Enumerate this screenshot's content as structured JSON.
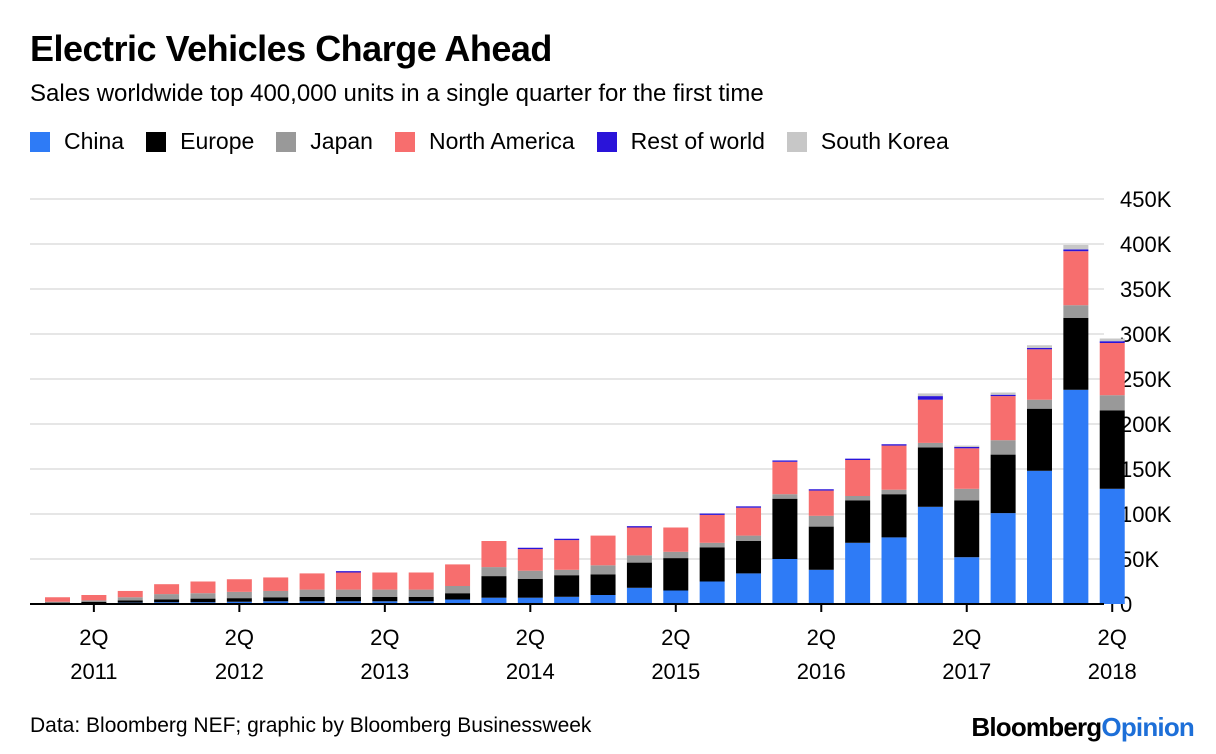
{
  "colors": {
    "China": "#2E7BF6",
    "Europe": "#000000",
    "Japan": "#999999",
    "North America": "#F76E6E",
    "Rest of world": "#2A14D9",
    "South Korea": "#C7C7C7",
    "grid": "#E6E6E6",
    "brand_accent": "#1D6FD8"
  },
  "brand": {
    "part1": "Bloomberg",
    "part2": "Opinion"
  },
  "footer": {
    "source": "Data: Bloomberg NEF; graphic by Bloomberg Businessweek"
  },
  "chart_data": {
    "type": "bar",
    "stacked": true,
    "title": "Electric Vehicles Charge Ahead",
    "subtitle": "Sales worldwide top 400,000 units in a single quarter for the first time",
    "x": [
      "1Q 2011",
      "2Q 2011",
      "3Q 2011",
      "4Q 2011",
      "1Q 2012",
      "2Q 2012",
      "3Q 2012",
      "4Q 2012",
      "1Q 2013",
      "2Q 2013",
      "3Q 2013",
      "4Q 2013",
      "1Q 2014",
      "2Q 2014",
      "3Q 2014",
      "4Q 2014",
      "1Q 2015",
      "2Q 2015",
      "3Q 2015",
      "4Q 2015",
      "1Q 2016",
      "2Q 2016",
      "3Q 2016",
      "4Q 2016",
      "1Q 2017",
      "2Q 2017",
      "3Q 2017",
      "4Q 2017",
      "1Q 2018",
      "2Q 2018"
    ],
    "x_tick_labels": [
      {
        "index": 1,
        "quarter": "2Q",
        "year": "2011"
      },
      {
        "index": 5,
        "quarter": "2Q",
        "year": "2012"
      },
      {
        "index": 9,
        "quarter": "2Q",
        "year": "2013"
      },
      {
        "index": 13,
        "quarter": "2Q",
        "year": "2014"
      },
      {
        "index": 17,
        "quarter": "2Q",
        "year": "2015"
      },
      {
        "index": 21,
        "quarter": "2Q",
        "year": "2016"
      },
      {
        "index": 25,
        "quarter": "2Q",
        "year": "2017"
      },
      {
        "index": 29,
        "quarter": "2Q",
        "year": "2018"
      }
    ],
    "y_ticks": [
      {
        "value": 0,
        "label": "0"
      },
      {
        "value": 50000,
        "label": "50K"
      },
      {
        "value": 100000,
        "label": "100K"
      },
      {
        "value": 150000,
        "label": "150K"
      },
      {
        "value": 200000,
        "label": "200K"
      },
      {
        "value": 250000,
        "label": "250K"
      },
      {
        "value": 300000,
        "label": "300K"
      },
      {
        "value": 350000,
        "label": "350K"
      },
      {
        "value": 400000,
        "label": "400K"
      },
      {
        "value": 450000,
        "label": "450K"
      }
    ],
    "ylim": [
      0,
      450000
    ],
    "grid": true,
    "legend_position": "top-left",
    "series": [
      {
        "name": "China",
        "values": [
          1000,
          1000,
          1500,
          2000,
          2000,
          2500,
          3000,
          3000,
          3000,
          3000,
          3000,
          5000,
          7000,
          7000,
          8000,
          10000,
          18000,
          15000,
          25000,
          34000,
          50000,
          38000,
          68000,
          74000,
          108000,
          52000,
          101000,
          148000,
          238000,
          128000
        ]
      },
      {
        "name": "Europe",
        "values": [
          500,
          1500,
          2500,
          3000,
          4000,
          4000,
          4500,
          5000,
          5000,
          5000,
          5000,
          7000,
          24000,
          21000,
          24000,
          23000,
          28000,
          36000,
          38000,
          36000,
          67000,
          48000,
          47000,
          48000,
          66000,
          63000,
          65000,
          69000,
          80000,
          87000
        ]
      },
      {
        "name": "Japan",
        "values": [
          1000,
          1500,
          3500,
          6000,
          6000,
          7000,
          7000,
          8000,
          8000,
          8000,
          8000,
          8000,
          10000,
          9000,
          6000,
          10000,
          8000,
          7000,
          5000,
          6000,
          5000,
          12000,
          5000,
          5000,
          5000,
          13000,
          16000,
          10000,
          14000,
          17000
        ]
      },
      {
        "name": "North America",
        "values": [
          5000,
          6000,
          7000,
          11000,
          13000,
          14000,
          15000,
          18000,
          19000,
          19000,
          19000,
          24000,
          29000,
          24000,
          33000,
          33000,
          31000,
          27000,
          31000,
          31000,
          36000,
          28000,
          40000,
          49000,
          48000,
          45000,
          49000,
          56000,
          60000,
          58000
        ]
      },
      {
        "name": "Rest of world",
        "values": [
          0,
          0,
          0,
          0,
          0,
          0,
          0,
          0,
          1500,
          0,
          0,
          0,
          0,
          1500,
          1500,
          0,
          1500,
          0,
          1500,
          1500,
          1500,
          1500,
          1500,
          1500,
          4000,
          1500,
          1500,
          1500,
          2000,
          2000
        ]
      },
      {
        "name": "South Korea",
        "values": [
          0,
          0,
          0,
          0,
          0,
          0,
          0,
          0,
          0,
          0,
          0,
          0,
          0,
          0,
          0,
          0,
          0,
          0,
          0,
          0,
          0,
          0,
          0,
          0,
          3000,
          1500,
          2500,
          3000,
          5000,
          3000
        ]
      }
    ]
  }
}
